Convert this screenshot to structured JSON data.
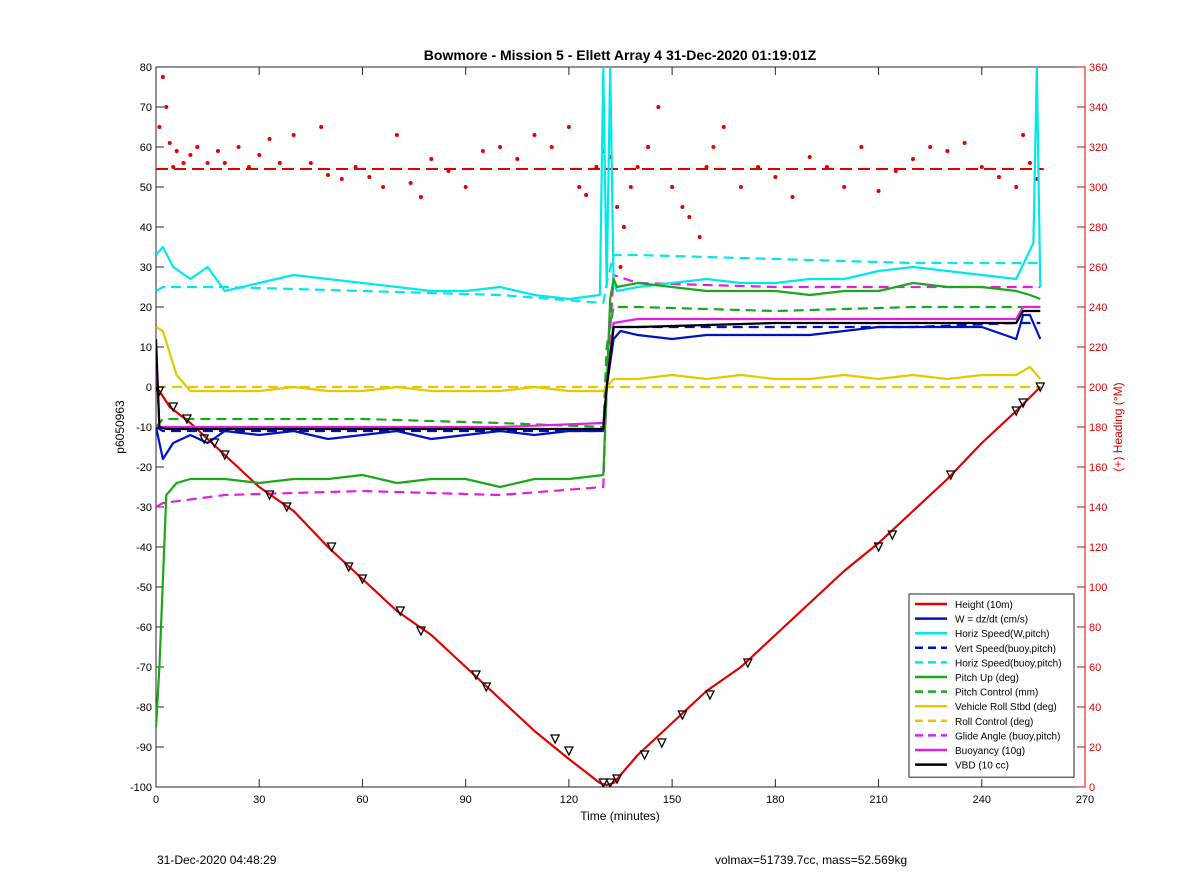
{
  "chart_data": {
    "type": "line",
    "title": "Bowmore - Mission 5 - Ellett Array 4 31-Dec-2020 01:19:01Z",
    "xlabel": "Time (minutes)",
    "ylabel_left": "p6050963",
    "ylabel_right": "(+) Heading (°M)",
    "xlim": [
      0,
      270
    ],
    "ylim_left": [
      -100,
      80
    ],
    "ylim_right": [
      0,
      360
    ],
    "xticks": [
      0,
      30,
      60,
      90,
      120,
      150,
      180,
      210,
      240,
      270
    ],
    "yticks_left": [
      -100,
      -90,
      -80,
      -70,
      -60,
      -50,
      -40,
      -30,
      -20,
      -10,
      0,
      10,
      20,
      30,
      40,
      50,
      60,
      70,
      80
    ],
    "yticks_right": [
      0,
      20,
      40,
      60,
      80,
      100,
      120,
      140,
      160,
      180,
      200,
      220,
      240,
      260,
      280,
      300,
      320,
      340,
      360
    ],
    "grid": false,
    "legend_position": "bottom-right",
    "series": [
      {
        "name": "Height (10m)",
        "color": "#e00000",
        "style": "solid",
        "x": [
          0,
          1,
          4,
          10,
          20,
          30,
          40,
          50,
          60,
          70,
          80,
          90,
          100,
          110,
          120,
          129,
          131,
          133,
          140,
          150,
          160,
          170,
          180,
          190,
          200,
          210,
          220,
          230,
          240,
          250,
          257
        ],
        "y": [
          0,
          -1,
          -5,
          -9,
          -17,
          -25,
          -31,
          -40,
          -48,
          -56,
          -62,
          -70,
          -78,
          -86,
          -93,
          -99,
          -99.5,
          -99,
          -92,
          -84,
          -76,
          -70,
          -62,
          -54,
          -46,
          -39,
          -31,
          -23,
          -14,
          -6,
          0
        ]
      },
      {
        "name": "W = dz/dt (cm/s)",
        "color": "#0010c8",
        "style": "solid",
        "x": [
          0,
          2,
          5,
          10,
          15,
          20,
          30,
          40,
          50,
          60,
          70,
          80,
          90,
          100,
          110,
          120,
          130,
          131,
          133,
          135,
          140,
          150,
          160,
          170,
          180,
          190,
          200,
          210,
          220,
          230,
          240,
          250,
          252,
          254,
          257
        ],
        "y": [
          -10,
          -18,
          -14,
          -12,
          -14,
          -11,
          -12,
          -11,
          -13,
          -12,
          -11,
          -13,
          -12,
          -11,
          -12,
          -11,
          -11,
          0,
          12,
          14,
          13,
          12,
          13,
          13,
          13,
          13,
          14,
          15,
          15,
          15,
          15,
          12,
          18,
          18,
          12
        ]
      },
      {
        "name": "Horiz Speed(W,pitch)",
        "color": "#00e8ec",
        "style": "solid",
        "x": [
          0,
          2,
          5,
          10,
          15,
          20,
          30,
          40,
          50,
          60,
          70,
          80,
          90,
          100,
          110,
          120,
          129,
          130,
          131,
          132,
          133,
          134,
          140,
          150,
          160,
          170,
          180,
          190,
          200,
          210,
          220,
          230,
          240,
          250,
          255,
          256,
          257
        ],
        "y": [
          33,
          35,
          30,
          27,
          30,
          24,
          26,
          28,
          27,
          26,
          25,
          24,
          24,
          25,
          23,
          22,
          23,
          80,
          25,
          80,
          26,
          24,
          25,
          26,
          27,
          26,
          26,
          27,
          27,
          29,
          30,
          29,
          28,
          27,
          36,
          80,
          25
        ]
      },
      {
        "name": "Vert Speed(buoy,pitch)",
        "color": "#0010c8",
        "style": "dashed",
        "x": [
          0,
          2,
          20,
          60,
          100,
          130,
          131,
          133,
          140,
          180,
          220,
          250,
          257
        ],
        "y": [
          -10,
          -11,
          -11,
          -11,
          -11,
          -11,
          0,
          15,
          15,
          15,
          15,
          16,
          16
        ]
      },
      {
        "name": "Horiz Speed(buoy,pitch)",
        "color": "#00e8ec",
        "style": "dashed",
        "x": [
          0,
          2,
          20,
          60,
          100,
          130,
          131,
          133,
          140,
          180,
          220,
          250,
          257
        ],
        "y": [
          24,
          25,
          25,
          24,
          23,
          21,
          26,
          33,
          33,
          32,
          31,
          31,
          31
        ]
      },
      {
        "name": "Pitch Up (deg)",
        "color": "#1aa81a",
        "style": "solid",
        "x": [
          0,
          1,
          3,
          6,
          10,
          20,
          30,
          40,
          50,
          60,
          70,
          80,
          90,
          100,
          110,
          120,
          130,
          131,
          132,
          133,
          134,
          140,
          150,
          160,
          170,
          180,
          190,
          200,
          210,
          220,
          230,
          240,
          250,
          254,
          257
        ],
        "y": [
          -85,
          -70,
          -27,
          -24,
          -23,
          -23,
          -24,
          -23,
          -23,
          -22,
          -24,
          -23,
          -23,
          -25,
          -23,
          -23,
          -22,
          0,
          22,
          27,
          25,
          26,
          25,
          24,
          24,
          24,
          23,
          24,
          24,
          26,
          25,
          25,
          24,
          23,
          22
        ]
      },
      {
        "name": "Pitch Control (mm)",
        "color": "#1aa81a",
        "style": "dashed",
        "x": [
          0,
          2,
          20,
          60,
          100,
          130,
          131,
          133,
          140,
          180,
          220,
          250,
          257
        ],
        "y": [
          -10,
          -8,
          -8,
          -8,
          -9,
          -10,
          10,
          20,
          20,
          19,
          20,
          20,
          20
        ]
      },
      {
        "name": "Vehicle Roll Stbd (deg)",
        "color": "#e6c800",
        "style": "solid",
        "x": [
          0,
          2,
          6,
          10,
          20,
          30,
          40,
          50,
          60,
          70,
          80,
          90,
          100,
          110,
          120,
          130,
          131,
          133,
          140,
          150,
          160,
          170,
          180,
          190,
          200,
          210,
          220,
          230,
          240,
          250,
          254,
          257
        ],
        "y": [
          15,
          14,
          3,
          -1,
          -1,
          -1,
          0,
          -1,
          -1,
          0,
          -1,
          -1,
          -1,
          0,
          -1,
          -1,
          0,
          2,
          2,
          3,
          2,
          3,
          2,
          2,
          3,
          2,
          3,
          2,
          3,
          3,
          5,
          2
        ]
      },
      {
        "name": "Roll Control (deg)",
        "color": "#e6c800",
        "style": "dashed",
        "x": [
          0,
          2,
          20,
          60,
          100,
          130,
          131,
          133,
          140,
          180,
          220,
          250,
          257
        ],
        "y": [
          0,
          0,
          0,
          0,
          0,
          0,
          0,
          0,
          0,
          0,
          0,
          0,
          0
        ]
      },
      {
        "name": "Glide Angle (buoy,pitch)",
        "color": "#e020e0",
        "style": "dashed",
        "x": [
          0,
          2,
          20,
          60,
          100,
          130,
          131,
          133,
          140,
          180,
          220,
          250,
          257
        ],
        "y": [
          -30,
          -29,
          -27,
          -26,
          -27,
          -25,
          0,
          28,
          26,
          25,
          25,
          25,
          25
        ]
      },
      {
        "name": "Buoyancy (10g)",
        "color": "#e020e0",
        "style": "solid",
        "x": [
          0,
          1,
          3,
          20,
          60,
          100,
          130,
          131,
          133,
          140,
          180,
          220,
          250,
          252,
          257
        ],
        "y": [
          8,
          -10,
          -10,
          -10,
          -10,
          -10,
          -9,
          0,
          16,
          17,
          17,
          17,
          17,
          20,
          20
        ]
      },
      {
        "name": "VBD (10 cc)",
        "color": "#000000",
        "style": "solid",
        "x": [
          0,
          1,
          3,
          20,
          60,
          100,
          130,
          131,
          133,
          140,
          180,
          220,
          250,
          252,
          257
        ],
        "y": [
          12,
          -10,
          -10.5,
          -10.5,
          -10.5,
          -10.5,
          -10.5,
          0,
          15,
          15,
          16,
          16,
          16,
          19,
          19
        ]
      }
    ],
    "heading": {
      "axis": "right",
      "color": "#e00000",
      "mean_heading": 309,
      "x": [
        1,
        2,
        3,
        4,
        5,
        6,
        8,
        10,
        12,
        15,
        18,
        20,
        24,
        27,
        30,
        33,
        36,
        40,
        45,
        48,
        50,
        54,
        58,
        62,
        66,
        70,
        74,
        77,
        80,
        85,
        90,
        95,
        100,
        105,
        110,
        115,
        120,
        123,
        125,
        128,
        130,
        132,
        134,
        135,
        136,
        138,
        140,
        143,
        146,
        150,
        153,
        155,
        158,
        160,
        162,
        165,
        170,
        175,
        180,
        185,
        190,
        195,
        200,
        205,
        210,
        215,
        220,
        225,
        230,
        235,
        240,
        245,
        250,
        252,
        254,
        256
      ],
      "y": [
        330,
        355,
        340,
        322,
        310,
        318,
        312,
        316,
        320,
        312,
        318,
        312,
        320,
        310,
        316,
        324,
        312,
        326,
        312,
        330,
        306,
        304,
        310,
        305,
        300,
        326,
        302,
        295,
        314,
        308,
        300,
        318,
        320,
        314,
        326,
        320,
        330,
        300,
        296,
        310,
        318,
        315,
        290,
        260,
        280,
        300,
        310,
        320,
        340,
        300,
        290,
        285,
        275,
        310,
        320,
        330,
        300,
        310,
        305,
        295,
        315,
        310,
        300,
        320,
        298,
        308,
        314,
        320,
        318,
        322,
        310,
        305,
        300,
        326,
        312,
        304
      ]
    },
    "markers": {
      "symbol": "triangle",
      "color": "#000000",
      "x": [
        1,
        5,
        9,
        14,
        17,
        20,
        33,
        38,
        51,
        56,
        60,
        71,
        77,
        93,
        96,
        116,
        120,
        130,
        132,
        134,
        142,
        147,
        153,
        161,
        172,
        210,
        214,
        231,
        250,
        252,
        257
      ],
      "y": [
        -1,
        -5,
        -8,
        -13,
        -14,
        -17,
        -27,
        -30,
        -40,
        -45,
        -48,
        -56,
        -61,
        -72,
        -75,
        -88,
        -91,
        -99,
        -99,
        -98,
        -92,
        -89,
        -82,
        -77,
        -69,
        -40,
        -37,
        -22,
        -6,
        -4,
        0
      ]
    }
  },
  "footer": {
    "left": "31-Dec-2020 04:48:29",
    "right": "volmax=51739.7cc, mass=52.569kg"
  }
}
